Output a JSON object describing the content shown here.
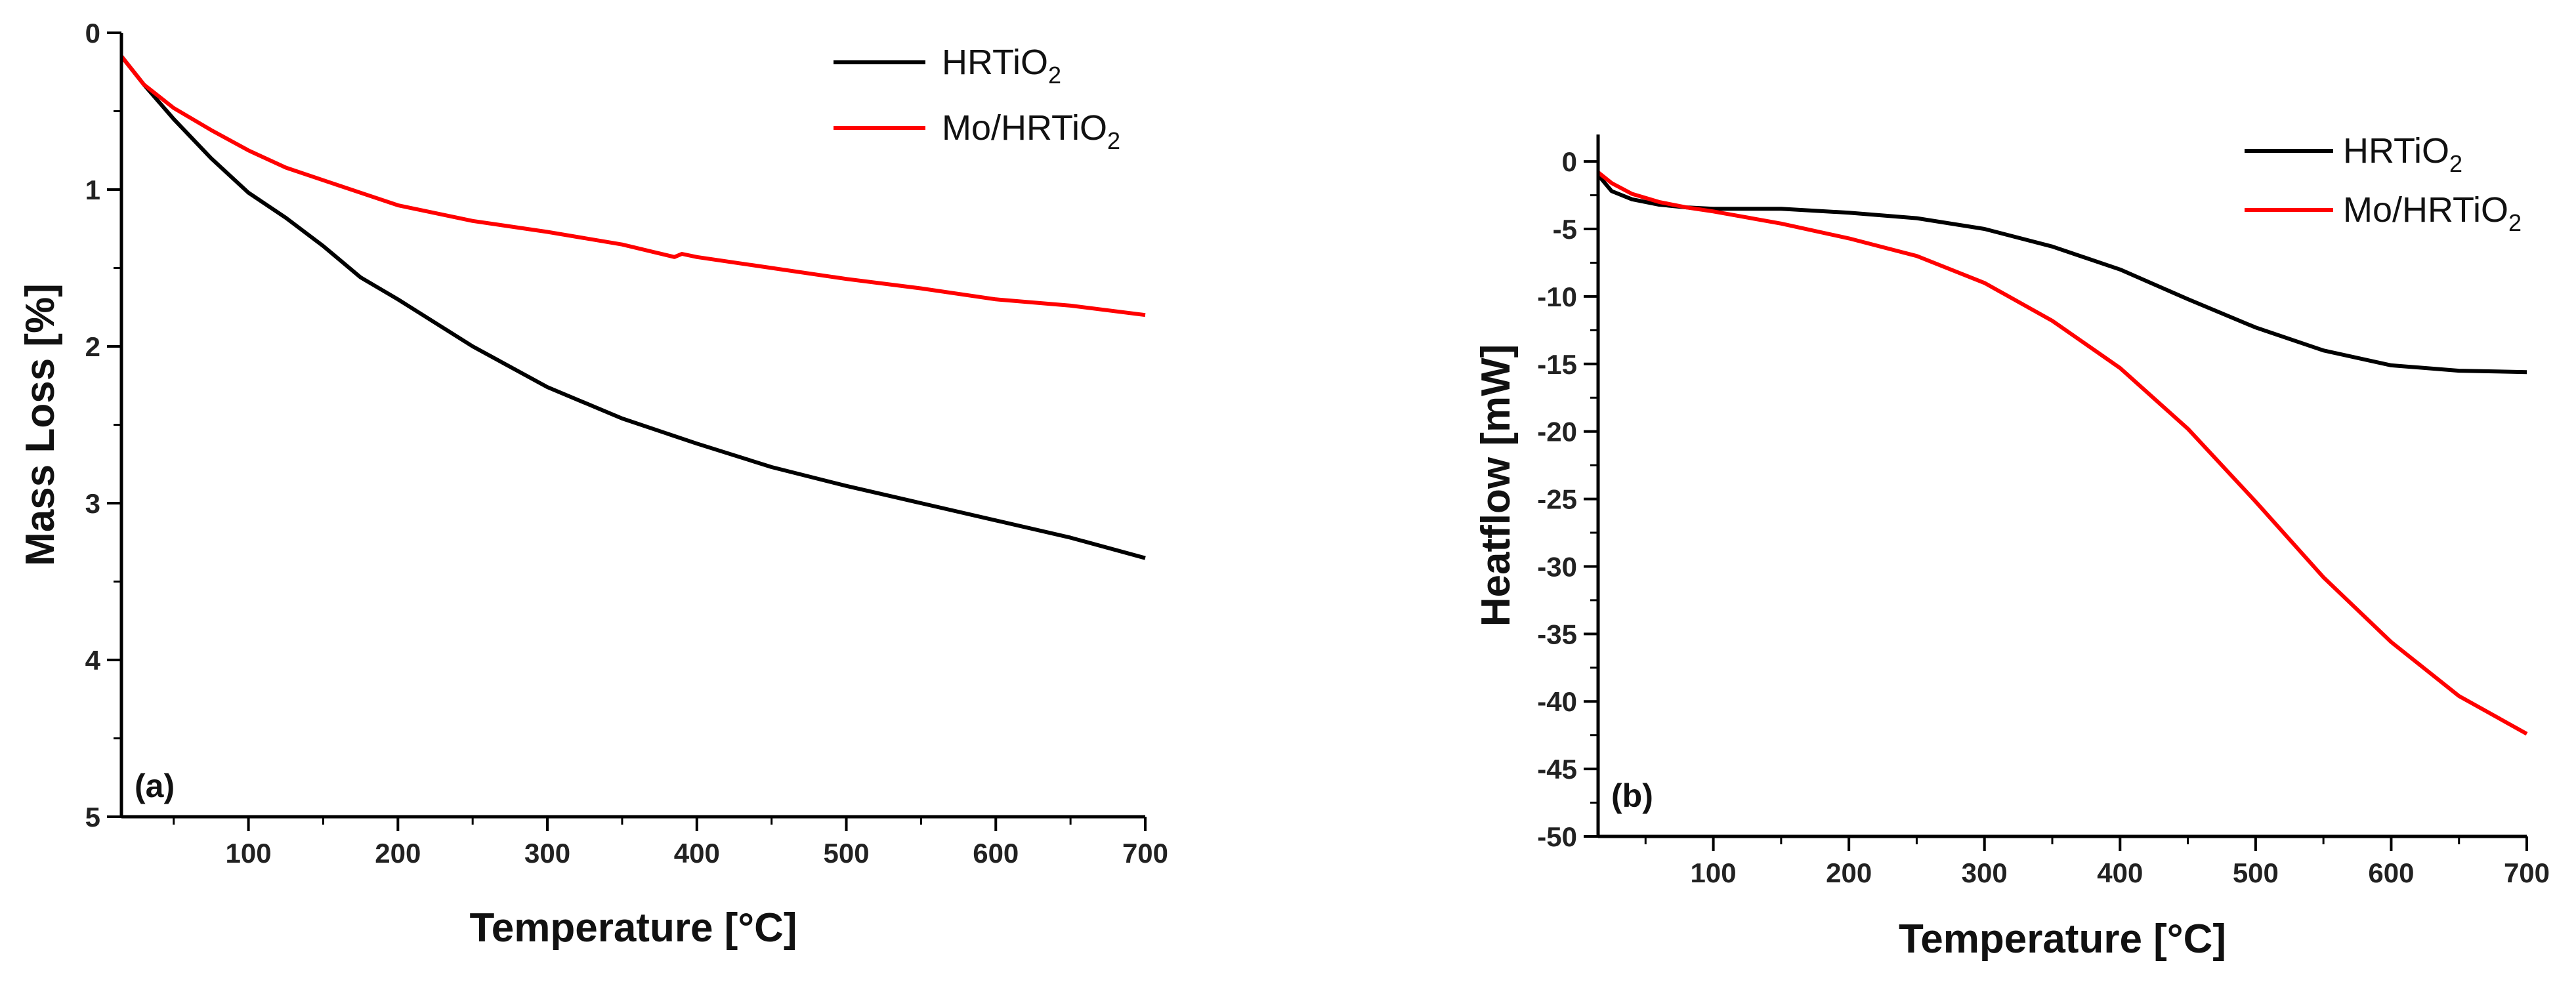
{
  "chart_data": [
    {
      "type": "line",
      "panel_label": "(a)",
      "xlabel": "Temperature [°C]",
      "ylabel": "Mass Loss [%]",
      "xlim": [
        15,
        700
      ],
      "ylim": [
        0,
        5
      ],
      "y_inverted": true,
      "xticks": [
        100,
        200,
        300,
        400,
        500,
        600,
        700
      ],
      "yticks": [
        0,
        1,
        2,
        3,
        4,
        5
      ],
      "legend_position": "top-right",
      "series": [
        {
          "name": "HRTiO",
          "subscript": "2",
          "color": "#000000",
          "x": [
            15,
            30,
            50,
            75,
            100,
            125,
            150,
            175,
            200,
            250,
            300,
            350,
            400,
            450,
            500,
            550,
            600,
            650,
            700
          ],
          "y": [
            0.15,
            0.33,
            0.55,
            0.8,
            1.02,
            1.18,
            1.36,
            1.56,
            1.7,
            2.0,
            2.26,
            2.46,
            2.62,
            2.77,
            2.89,
            3.0,
            3.11,
            3.22,
            3.35
          ]
        },
        {
          "name": "Mo/HRTiO",
          "subscript": "2",
          "color": "#ff0000",
          "x": [
            15,
            30,
            50,
            75,
            100,
            125,
            150,
            175,
            200,
            250,
            300,
            350,
            385,
            390,
            400,
            450,
            500,
            550,
            600,
            650,
            700
          ],
          "y": [
            0.15,
            0.33,
            0.48,
            0.62,
            0.75,
            0.86,
            0.94,
            1.02,
            1.1,
            1.2,
            1.27,
            1.35,
            1.43,
            1.41,
            1.43,
            1.5,
            1.57,
            1.63,
            1.7,
            1.74,
            1.8
          ]
        }
      ]
    },
    {
      "type": "line",
      "panel_label": "(b)",
      "xlabel": "Temperature [°C]",
      "ylabel": "Heatflow [mW]",
      "xlim": [
        15,
        700
      ],
      "ylim": [
        -50,
        2
      ],
      "y_inverted": false,
      "xticks": [
        100,
        200,
        300,
        400,
        500,
        600,
        700
      ],
      "yticks": [
        0,
        -5,
        -10,
        -15,
        -20,
        -25,
        -30,
        -35,
        -40,
        -45,
        -50
      ],
      "legend_position": "top-right",
      "series": [
        {
          "name": "HRTiO",
          "subscript": "2",
          "color": "#000000",
          "x": [
            15,
            25,
            40,
            60,
            80,
            100,
            150,
            200,
            250,
            300,
            350,
            400,
            450,
            500,
            550,
            600,
            650,
            700
          ],
          "y": [
            -1,
            -2.2,
            -2.8,
            -3.2,
            -3.4,
            -3.5,
            -3.5,
            -3.8,
            -4.2,
            -5.0,
            -6.3,
            -8.0,
            -10.2,
            -12.3,
            -14.0,
            -15.1,
            -15.5,
            -15.6
          ]
        },
        {
          "name": "Mo/HRTiO",
          "subscript": "2",
          "color": "#ff0000",
          "x": [
            15,
            25,
            40,
            60,
            80,
            100,
            150,
            200,
            250,
            300,
            350,
            400,
            450,
            500,
            550,
            600,
            650,
            700
          ],
          "y": [
            -0.8,
            -1.6,
            -2.4,
            -3.0,
            -3.4,
            -3.7,
            -4.6,
            -5.7,
            -7.0,
            -9.0,
            -11.8,
            -15.3,
            -19.8,
            -25.2,
            -30.8,
            -35.6,
            -39.6,
            -42.4
          ]
        }
      ]
    }
  ]
}
